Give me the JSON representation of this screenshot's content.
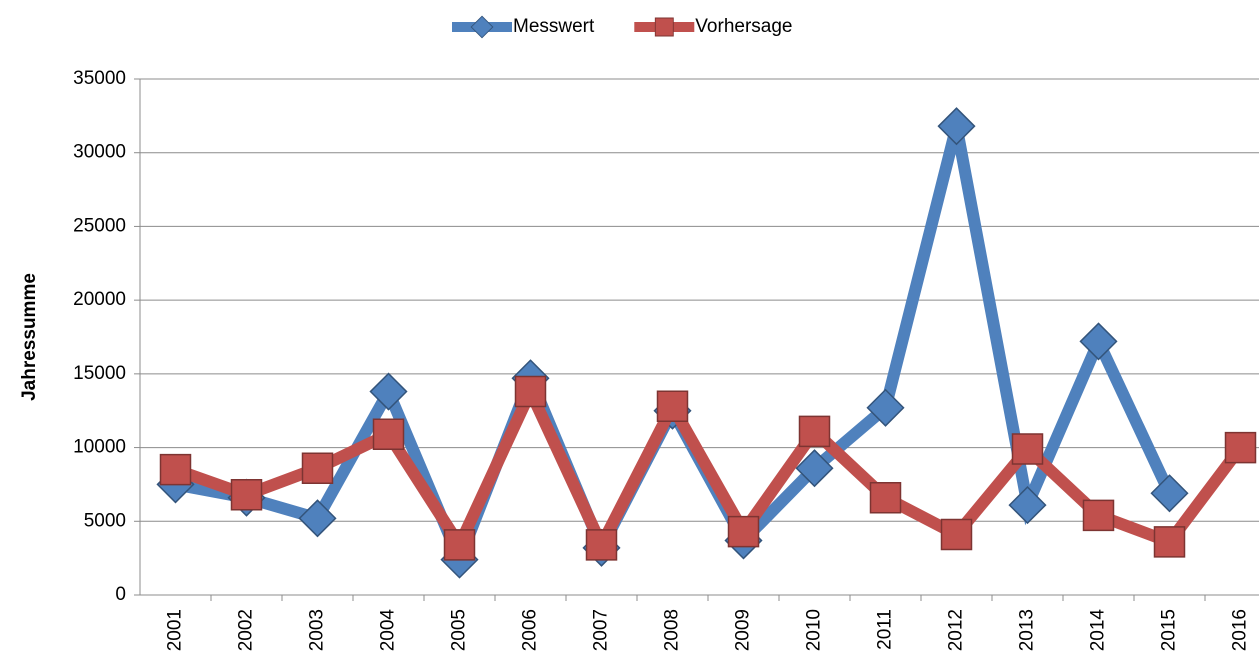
{
  "chart_data": {
    "type": "line",
    "y_label": "Jahressumme",
    "categories": [
      "2001",
      "2002",
      "2003",
      "2004",
      "2005",
      "2006",
      "2007",
      "2008",
      "2009",
      "2010",
      "2011",
      "2012",
      "2013",
      "2014",
      "2015",
      "2016"
    ],
    "series": [
      {
        "name": "Messwert",
        "color": "#4f81bd",
        "marker": "diamond",
        "values": [
          7500,
          6600,
          5200,
          13800,
          2400,
          14700,
          3200,
          12500,
          3700,
          8600,
          12700,
          31800,
          6100,
          17200,
          6900,
          null
        ]
      },
      {
        "name": "Vorhersage",
        "color": "#c0504d",
        "marker": "square",
        "values": [
          8500,
          6800,
          8600,
          10900,
          3400,
          13800,
          3400,
          12800,
          4300,
          11100,
          6600,
          4100,
          9900,
          5400,
          3600,
          10000
        ]
      }
    ],
    "ylim": [
      0,
      35000
    ],
    "yticks": [
      0,
      5000,
      10000,
      15000,
      20000,
      25000,
      30000,
      35000
    ],
    "grid": true,
    "legend": "top"
  }
}
